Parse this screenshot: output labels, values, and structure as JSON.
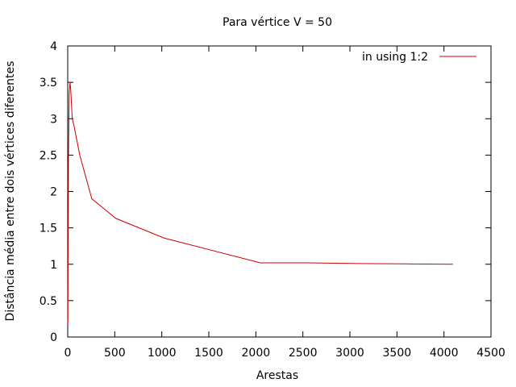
{
  "chart_data": {
    "type": "line",
    "title": "Para vértice V = 50",
    "xlabel": "Arestas",
    "ylabel": "Distância média entre dois vértices diferentes",
    "xlim": [
      0,
      4500
    ],
    "ylim": [
      0,
      4
    ],
    "x_ticks": [
      "0",
      "500",
      "1000",
      "1500",
      "2000",
      "2500",
      "3000",
      "3500",
      "4000",
      "4500"
    ],
    "y_ticks": [
      "0",
      "0.5",
      "1",
      "1.5",
      "2",
      "2.5",
      "3",
      "3.5",
      "4"
    ],
    "grid": false,
    "legend_position": "top-right",
    "series": [
      {
        "name": "in using 1:2",
        "color": "#cc0000",
        "x": [
          1,
          2,
          3,
          4,
          6,
          8,
          12,
          16,
          24,
          32,
          40,
          48,
          64,
          128,
          256,
          512,
          1024,
          2048,
          2560,
          3072,
          3584,
          4096
        ],
        "y": [
          0.16,
          0.25,
          0.6,
          1.1,
          1.7,
          2.4,
          3.0,
          3.35,
          3.5,
          3.4,
          3.2,
          3.0,
          2.92,
          2.5,
          1.9,
          1.63,
          1.36,
          1.02,
          1.02,
          1.01,
          1.005,
          1.0
        ]
      }
    ]
  }
}
